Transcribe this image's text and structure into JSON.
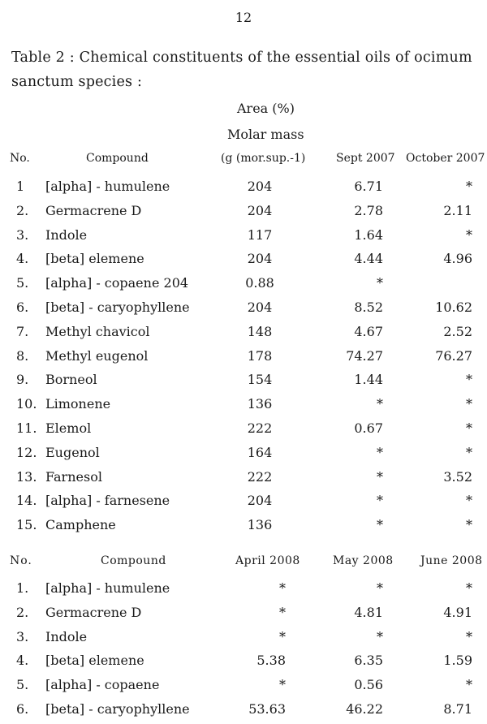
{
  "page_number": "12",
  "caption": "Table 2 : Chemical constituents of the essential oils of ocimum sanctum species :",
  "area_header": "Area (%)",
  "molar_header": "Molar mass",
  "table1": {
    "headers": {
      "no": "No.",
      "compound": "Compound",
      "molar": "(g (mor.sup.-1)",
      "col1": "Sept 2007",
      "col2": "October 2007"
    },
    "rows": [
      {
        "no": "1",
        "name": "[alpha] - humulene",
        "molar": "204",
        "v1": "6.71",
        "v2": "*"
      },
      {
        "no": "2.",
        "name": "Germacrene D",
        "molar": "204",
        "v1": "2.78",
        "v2": "2.11"
      },
      {
        "no": "3.",
        "name": "Indole",
        "molar": "117",
        "v1": "1.64",
        "v2": "*"
      },
      {
        "no": "4.",
        "name": "[beta] elemene",
        "molar": "204",
        "v1": "4.44",
        "v2": "4.96"
      },
      {
        "no": "5.",
        "name": "[alpha] - copaene 204",
        "molar": "0.88",
        "v1": "*",
        "v2": ""
      },
      {
        "no": "6.",
        "name": "[beta] - caryophyllene",
        "molar": "204",
        "v1": "8.52",
        "v2": "10.62"
      },
      {
        "no": "7.",
        "name": "Methyl chavicol",
        "molar": "148",
        "v1": "4.67",
        "v2": "2.52"
      },
      {
        "no": "8.",
        "name": "Methyl eugenol",
        "molar": "178",
        "v1": "74.27",
        "v2": "76.27"
      },
      {
        "no": "9.",
        "name": "Borneol",
        "molar": "154",
        "v1": "1.44",
        "v2": "*"
      },
      {
        "no": "10.",
        "name": "Limonene",
        "molar": "136",
        "v1": "*",
        "v2": "*"
      },
      {
        "no": "11.",
        "name": "Elemol",
        "molar": "222",
        "v1": "0.67",
        "v2": "*"
      },
      {
        "no": "12.",
        "name": "Eugenol",
        "molar": "164",
        "v1": "*",
        "v2": "*"
      },
      {
        "no": "13.",
        "name": "Farnesol",
        "molar": "222",
        "v1": "*",
        "v2": "3.52"
      },
      {
        "no": "14.",
        "name": "[alpha] - farnesene",
        "molar": "204",
        "v1": "*",
        "v2": "*"
      },
      {
        "no": "15.",
        "name": "Camphene",
        "molar": "136",
        "v1": "*",
        "v2": "*"
      }
    ]
  },
  "table2": {
    "headers": {
      "no": "No.",
      "compound": "Compound",
      "col0": "April 2008",
      "col1": "May 2008",
      "col2": "June 2008"
    },
    "rows": [
      {
        "no": "1.",
        "name": "[alpha] - humulene",
        "v0": "*",
        "v1": "*",
        "v2": "*"
      },
      {
        "no": "2.",
        "name": "Germacrene D",
        "v0": "*",
        "v1": "4.81",
        "v2": "4.91"
      },
      {
        "no": "3.",
        "name": "Indole",
        "v0": "*",
        "v1": "*",
        "v2": "*"
      },
      {
        "no": "4.",
        "name": "[beta] elemene",
        "v0": "5.38",
        "v1": "6.35",
        "v2": "1.59"
      },
      {
        "no": "5.",
        "name": "[alpha] - copaene",
        "v0": "*",
        "v1": "0.56",
        "v2": "*"
      },
      {
        "no": "6.",
        "name": "[beta] - caryophyllene",
        "v0": "53.63",
        "v1": "46.22",
        "v2": "8.71"
      }
    ]
  }
}
